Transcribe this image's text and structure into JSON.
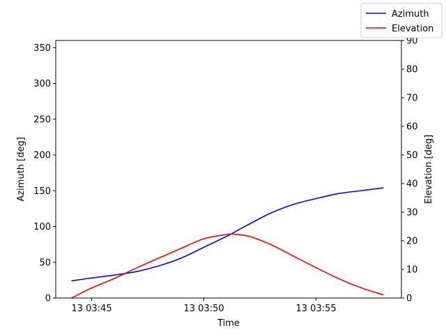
{
  "chart_data": {
    "type": "line",
    "xlabel": "Time",
    "ylabel_left": "Azimuth [deg]",
    "ylabel_right": "Elevation [deg]",
    "xlim": [
      "13 03:43:24",
      "13 03:58:48"
    ],
    "x_ticks": [
      "13 03:45",
      "13 03:50",
      "13 03:55"
    ],
    "ylim_left": [
      0,
      360
    ],
    "ylim_right": [
      0,
      90
    ],
    "y_ticks_left": [
      "0",
      "50",
      "100",
      "150",
      "200",
      "250",
      "300",
      "350"
    ],
    "y_ticks_right": [
      "0",
      "10",
      "20",
      "30",
      "40",
      "50",
      "60",
      "70",
      "80",
      "90"
    ],
    "grid": false,
    "legend_position": "top-right",
    "x": [
      "13 03:44:06",
      "13 03:45:00",
      "13 03:46:00",
      "13 03:47:00",
      "13 03:48:00",
      "13 03:49:00",
      "13 03:50:00",
      "13 03:51:00",
      "13 03:51:18",
      "13 03:52:00",
      "13 03:53:00",
      "13 03:54:00",
      "13 03:55:00",
      "13 03:56:00",
      "13 03:57:00",
      "13 03:58:00"
    ],
    "series": [
      {
        "name": "Azimuth",
        "axis": "left",
        "color": "#0000ff",
        "values": [
          24,
          28,
          32,
          37,
          45,
          56,
          71,
          86,
          91,
          103,
          119,
          131,
          139,
          146,
          150,
          154
        ]
      },
      {
        "name": "Elevation",
        "axis": "right",
        "color": "#ff0000",
        "values": [
          0,
          3.5,
          6.8,
          10.5,
          14.0,
          17.4,
          20.7,
          22.2,
          22.3,
          21.6,
          18.6,
          14.6,
          10.6,
          6.8,
          3.6,
          1.1
        ]
      }
    ]
  }
}
